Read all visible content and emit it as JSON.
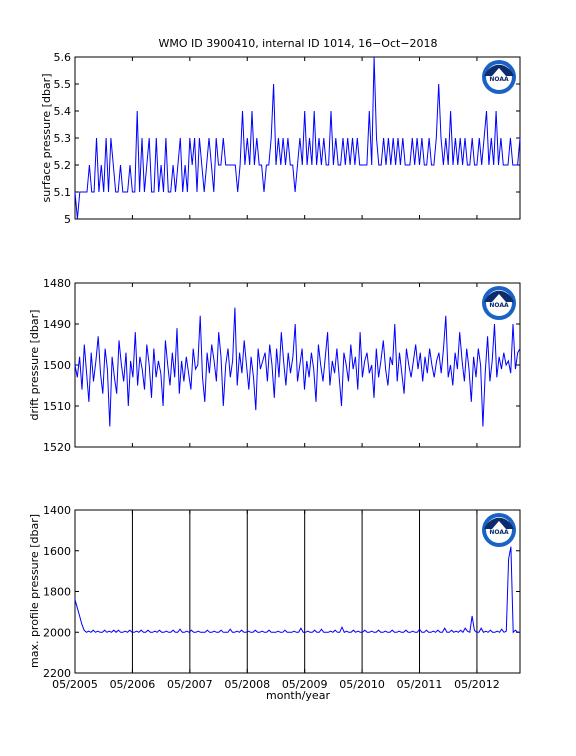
{
  "title": "WMO ID 3900410, internal ID 1014, 16−Oct−2018",
  "xlabel": "month/year",
  "x_tick_labels": [
    "05/2005",
    "05/2006",
    "05/2007",
    "05/2008",
    "05/2009",
    "05/2010",
    "05/2011",
    "05/2012"
  ],
  "x_tick_years": [
    2005.33,
    2006.33,
    2007.33,
    2008.33,
    2009.33,
    2010.33,
    2011.33,
    2012.33
  ],
  "xlim": [
    2005.33,
    2013.08
  ],
  "line_color": "#0000ff",
  "logo_name": "noaa-logo",
  "logo_text": "NOAA",
  "chart_data": [
    {
      "type": "line",
      "ylabel": "surface pressure [dbar]",
      "ylim": [
        5,
        5.6
      ],
      "y_reversed": false,
      "yticks": [
        5,
        5.1,
        5.2,
        5.3,
        5.4,
        5.5,
        5.6
      ],
      "ytick_labels": [
        "5",
        "5.1",
        "5.2",
        "5.3",
        "5.4",
        "5.5",
        "5.6"
      ],
      "vertical_grid": false,
      "x_start": 2005.33,
      "x_end": 2013.08,
      "values": [
        5.1,
        5.0,
        5.1,
        5.1,
        5.1,
        5.1,
        5.2,
        5.1,
        5.1,
        5.3,
        5.1,
        5.2,
        5.1,
        5.3,
        5.1,
        5.3,
        5.2,
        5.1,
        5.1,
        5.2,
        5.1,
        5.1,
        5.1,
        5.2,
        5.1,
        5.1,
        5.4,
        5.1,
        5.3,
        5.1,
        5.2,
        5.3,
        5.1,
        5.1,
        5.3,
        5.1,
        5.2,
        5.1,
        5.3,
        5.1,
        5.1,
        5.2,
        5.1,
        5.2,
        5.3,
        5.1,
        5.2,
        5.1,
        5.3,
        5.2,
        5.3,
        5.1,
        5.3,
        5.2,
        5.1,
        5.2,
        5.3,
        5.2,
        5.1,
        5.3,
        5.2,
        5.2,
        5.3,
        5.2,
        5.2,
        5.2,
        5.2,
        5.2,
        5.1,
        5.2,
        5.4,
        5.2,
        5.3,
        5.2,
        5.4,
        5.2,
        5.3,
        5.2,
        5.2,
        5.1,
        5.2,
        5.2,
        5.3,
        5.5,
        5.2,
        5.3,
        5.2,
        5.3,
        5.2,
        5.3,
        5.2,
        5.2,
        5.1,
        5.2,
        5.3,
        5.2,
        5.4,
        5.2,
        5.3,
        5.2,
        5.4,
        5.2,
        5.3,
        5.2,
        5.3,
        5.2,
        5.2,
        5.4,
        5.2,
        5.3,
        5.2,
        5.2,
        5.3,
        5.2,
        5.3,
        5.2,
        5.3,
        5.2,
        5.3,
        5.2,
        5.2,
        5.2,
        5.2,
        5.4,
        5.2,
        5.6,
        5.3,
        5.2,
        5.2,
        5.3,
        5.2,
        5.3,
        5.2,
        5.3,
        5.2,
        5.3,
        5.2,
        5.3,
        5.2,
        5.2,
        5.2,
        5.3,
        5.2,
        5.3,
        5.2,
        5.3,
        5.2,
        5.2,
        5.3,
        5.2,
        5.2,
        5.3,
        5.5,
        5.3,
        5.2,
        5.3,
        5.2,
        5.4,
        5.2,
        5.3,
        5.2,
        5.3,
        5.2,
        5.3,
        5.2,
        5.2,
        5.3,
        5.2,
        5.2,
        5.3,
        5.2,
        5.3,
        5.4,
        5.2,
        5.3,
        5.2,
        5.4,
        5.2,
        5.3,
        5.2,
        5.2,
        5.2,
        5.3,
        5.2,
        5.2,
        5.2,
        5.3
      ]
    },
    {
      "type": "line",
      "ylabel": "drift pressure [dbar]",
      "ylim": [
        1480,
        1520
      ],
      "y_reversed": true,
      "yticks": [
        1480,
        1490,
        1500,
        1510,
        1520
      ],
      "ytick_labels": [
        "1480",
        "1490",
        "1500",
        "1510",
        "1520"
      ],
      "vertical_grid": false,
      "x_start": 2005.33,
      "x_end": 2013.08,
      "values": [
        1500,
        1503,
        1498,
        1506,
        1495,
        1502,
        1509,
        1497,
        1504,
        1499,
        1493,
        1502,
        1507,
        1496,
        1501,
        1515,
        1498,
        1503,
        1507,
        1494,
        1500,
        1504,
        1497,
        1510,
        1499,
        1503,
        1492,
        1505,
        1498,
        1501,
        1506,
        1495,
        1500,
        1508,
        1496,
        1503,
        1499,
        1502,
        1510,
        1494,
        1500,
        1505,
        1497,
        1503,
        1491,
        1507,
        1499,
        1504,
        1498,
        1502,
        1506,
        1496,
        1501,
        1500,
        1488,
        1503,
        1509,
        1497,
        1502,
        1495,
        1499,
        1504,
        1492,
        1498,
        1510,
        1500,
        1496,
        1503,
        1499,
        1486,
        1505,
        1497,
        1502,
        1494,
        1500,
        1506,
        1498,
        1503,
        1511,
        1496,
        1501,
        1499,
        1497,
        1504,
        1495,
        1500,
        1508,
        1496,
        1503,
        1492,
        1499,
        1505,
        1497,
        1502,
        1498,
        1490,
        1504,
        1500,
        1496,
        1506,
        1499,
        1503,
        1497,
        1501,
        1509,
        1495,
        1500,
        1504,
        1498,
        1492,
        1505,
        1499,
        1502,
        1496,
        1503,
        1510,
        1497,
        1500,
        1504,
        1495,
        1501,
        1498,
        1506,
        1492,
        1503,
        1499,
        1497,
        1502,
        1500,
        1508,
        1496,
        1503,
        1499,
        1494,
        1501,
        1505,
        1498,
        1500,
        1490,
        1504,
        1497,
        1502,
        1507,
        1496,
        1500,
        1503,
        1499,
        1495,
        1501,
        1497,
        1504,
        1498,
        1502,
        1496,
        1500,
        1503,
        1499,
        1497,
        1502,
        1496,
        1488,
        1503,
        1500,
        1505,
        1497,
        1501,
        1492,
        1499,
        1504,
        1496,
        1501,
        1509,
        1498,
        1503,
        1496,
        1500,
        1515,
        1502,
        1493,
        1504,
        1499,
        1490,
        1503,
        1498,
        1501,
        1497,
        1500,
        1499,
        1502,
        1490,
        1501,
        1497,
        1496
      ]
    },
    {
      "type": "line",
      "ylabel": "max. profile pressure [dbar]",
      "ylim": [
        1400,
        2200
      ],
      "y_reversed": true,
      "yticks": [
        1400,
        1600,
        1800,
        2000,
        2200
      ],
      "ytick_labels": [
        "1400",
        "1600",
        "1800",
        "2000",
        "2200"
      ],
      "vertical_grid": true,
      "x_start": 2005.33,
      "x_end": 2013.08,
      "values": [
        1840,
        1880,
        1920,
        1960,
        1990,
        2000,
        1995,
        2000,
        1990,
        2000,
        1995,
        2000,
        2000,
        1990,
        2000,
        1995,
        2000,
        1990,
        2000,
        1990,
        2000,
        2000,
        1995,
        2000,
        1990,
        2000,
        2000,
        1995,
        2000,
        1990,
        2000,
        2000,
        1990,
        2000,
        2000,
        1995,
        2000,
        1990,
        2000,
        2000,
        1995,
        2000,
        2000,
        1990,
        2000,
        2000,
        1985,
        2000,
        2000,
        1995,
        2000,
        1990,
        2000,
        2000,
        1995,
        2000,
        2000,
        2000,
        1990,
        2000,
        2000,
        1995,
        2000,
        2000,
        1990,
        2000,
        2000,
        2000,
        1985,
        2000,
        2000,
        1995,
        2000,
        1990,
        2000,
        2000,
        1995,
        2000,
        2000,
        1990,
        2000,
        2000,
        1995,
        2000,
        2000,
        1990,
        2000,
        2000,
        2000,
        1995,
        2000,
        2000,
        1990,
        2000,
        2000,
        2000,
        1995,
        2000,
        2000,
        1980,
        2000,
        2000,
        1995,
        2000,
        2000,
        1990,
        2000,
        2000,
        1985,
        2000,
        2000,
        2000,
        1995,
        2000,
        1990,
        2000,
        2000,
        1975,
        2000,
        1995,
        2000,
        2000,
        1990,
        2000,
        1995,
        2000,
        2000,
        1990,
        2000,
        2000,
        1995,
        2000,
        2000,
        1990,
        2000,
        2000,
        1995,
        2000,
        2000,
        1990,
        2000,
        2000,
        1995,
        2000,
        2000,
        1990,
        2000,
        2000,
        1995,
        2000,
        2000,
        1985,
        2000,
        2000,
        1990,
        2000,
        2000,
        1995,
        2000,
        1990,
        2000,
        2000,
        1980,
        2000,
        2000,
        1990,
        2000,
        1995,
        2000,
        1990,
        2000,
        1980,
        1995,
        2000,
        1920,
        1990,
        2000,
        2000,
        1980,
        2000,
        1995,
        2000,
        1990,
        2000,
        2000,
        1995,
        2000,
        1985,
        2000,
        1995,
        1640,
        1580,
        2000,
        1990,
        2000,
        2000
      ]
    }
  ]
}
